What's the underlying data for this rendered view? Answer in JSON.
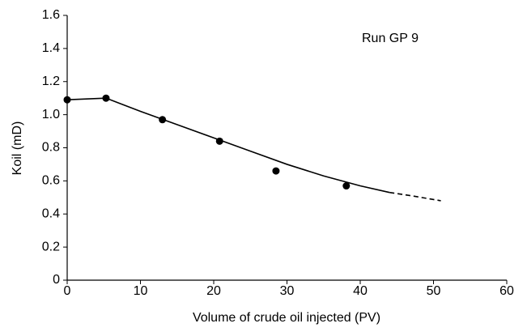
{
  "chart_data": {
    "type": "scatter",
    "xlabel": "Volume of crude oil injected (PV)",
    "ylabel": "Koil (mD)",
    "annotation": "Run GP 9",
    "xlim": [
      0,
      60
    ],
    "xticks": [
      0,
      10,
      20,
      30,
      40,
      50,
      60
    ],
    "ylim": [
      0,
      1.6
    ],
    "yticks": [
      0,
      0.2,
      0.4,
      0.6,
      0.8,
      {
        "value": 1,
        "label": "1.0"
      },
      1.2,
      1.4,
      1.6
    ],
    "grid": false,
    "color": "#000000",
    "points": {
      "x": [
        0,
        5.3,
        13,
        20.8,
        28.5,
        38.1
      ],
      "values": [
        1.09,
        1.1,
        0.97,
        0.84,
        0.66,
        0.57
      ]
    },
    "fit": {
      "x": [
        0,
        5.3,
        10,
        15,
        20,
        25,
        30,
        35,
        40,
        44
      ],
      "values": [
        1.09,
        1.1,
        1.02,
        0.94,
        0.86,
        0.78,
        0.7,
        0.63,
        0.57,
        0.53
      ]
    },
    "extrapolation": {
      "x": [
        44,
        47,
        51
      ],
      "values": [
        0.53,
        0.51,
        0.48
      ]
    }
  }
}
